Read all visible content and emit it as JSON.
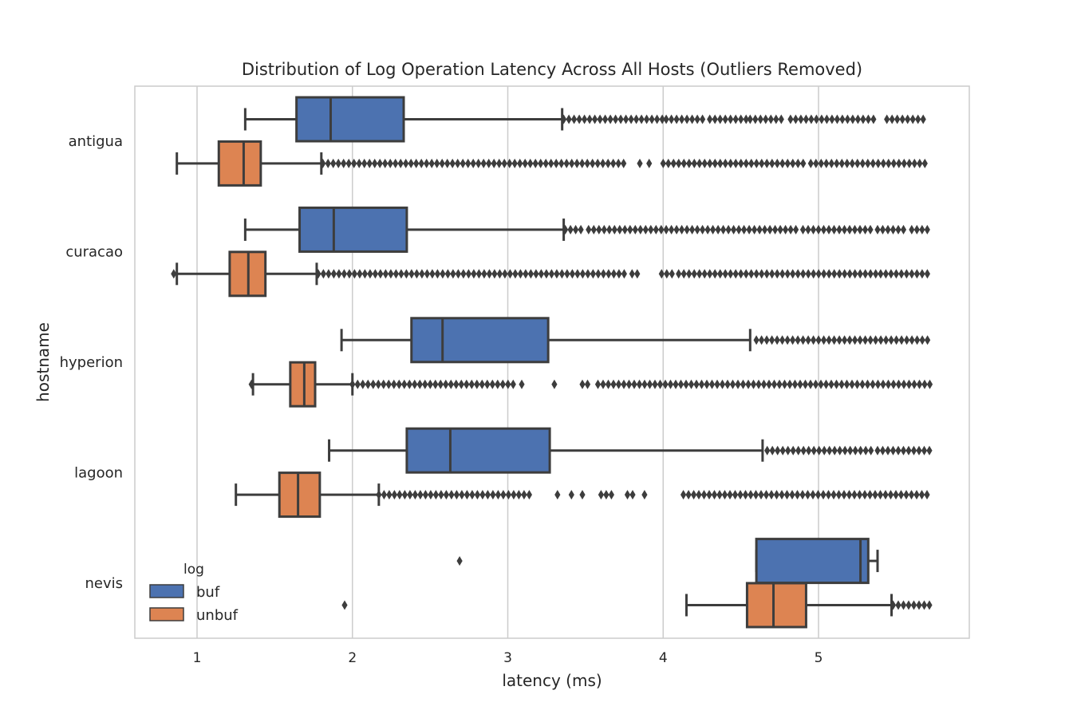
{
  "chart_data": {
    "type": "boxplot",
    "orientation": "horizontal",
    "title": "Distribution of Log Operation Latency Across All Hosts (Outliers Removed)",
    "xlabel": "latency (ms)",
    "ylabel": "hostname",
    "xlim": [
      0.6,
      5.97
    ],
    "x_ticks": [
      "1",
      "2",
      "3",
      "4",
      "5"
    ],
    "x_tick_values": [
      1,
      2,
      3,
      4,
      5
    ],
    "grid": "vertical",
    "categories": [
      "antigua",
      "curacao",
      "hyperion",
      "lagoon",
      "nevis"
    ],
    "legend": {
      "title": "log",
      "position": "lower-left",
      "entries": [
        {
          "name": "buf",
          "color": "#4c72b0"
        },
        {
          "name": "unbuf",
          "color": "#dd8452"
        }
      ]
    },
    "series": [
      {
        "name": "buf",
        "color": "#4c72b0",
        "boxes": [
          {
            "category": "antigua",
            "whislo": 1.31,
            "q1": 1.64,
            "med": 1.86,
            "q3": 2.33,
            "whishi": 3.35,
            "fliers": [
              [
                3.36,
                4.02
              ],
              [
                4.02,
                4.28
              ],
              [
                4.3,
                4.54
              ],
              [
                4.56,
                4.78
              ],
              [
                4.82,
                5.37
              ],
              [
                5.44,
                5.7
              ]
            ]
          },
          {
            "category": "curacao",
            "whislo": 1.31,
            "q1": 1.66,
            "med": 1.88,
            "q3": 2.35,
            "whishi": 3.36,
            "fliers": [
              [
                3.37,
                3.5
              ],
              [
                3.52,
                4.0
              ],
              [
                4.02,
                4.88
              ],
              [
                4.9,
                5.36
              ],
              [
                5.38,
                5.58
              ],
              [
                5.6,
                5.72
              ]
            ]
          },
          {
            "category": "hyperion",
            "whislo": 1.93,
            "q1": 2.38,
            "med": 2.58,
            "q3": 3.26,
            "whishi": 4.56,
            "fliers": [
              [
                4.6,
                5.73
              ]
            ]
          },
          {
            "category": "lagoon",
            "whislo": 1.85,
            "q1": 2.35,
            "med": 2.63,
            "q3": 3.27,
            "whishi": 4.64,
            "fliers": [
              [
                4.67,
                4.74
              ],
              [
                4.77,
                5.36
              ],
              [
                5.38,
                5.72
              ]
            ]
          },
          {
            "category": "nevis",
            "whislo": 4.6,
            "q1": 4.6,
            "med": 5.27,
            "q3": 5.32,
            "whishi": 5.38,
            "fliers": [
              [
                2.69,
                2.69
              ]
            ]
          }
        ]
      },
      {
        "name": "unbuf",
        "color": "#dd8452",
        "boxes": [
          {
            "category": "antigua",
            "whislo": 0.87,
            "q1": 1.14,
            "med": 1.3,
            "q3": 1.41,
            "whishi": 1.8,
            "fliers": [
              [
                1.81,
                3.76
              ],
              [
                3.85,
                3.85
              ],
              [
                3.91,
                3.91
              ],
              [
                4.0,
                4.92
              ],
              [
                4.95,
                5.71
              ]
            ]
          },
          {
            "category": "curacao",
            "whislo": 0.87,
            "q1": 1.21,
            "med": 1.33,
            "q3": 1.44,
            "whishi": 1.77,
            "fliers": [
              [
                0.85,
                0.86
              ],
              [
                1.78,
                3.76
              ],
              [
                3.8,
                3.86
              ],
              [
                3.99,
                4.06
              ],
              [
                4.1,
                5.37
              ],
              [
                5.4,
                5.72
              ]
            ]
          },
          {
            "category": "hyperion",
            "whislo": 1.36,
            "q1": 1.6,
            "med": 1.69,
            "q3": 1.76,
            "whishi": 2.0,
            "fliers": [
              [
                1.35,
                1.37
              ],
              [
                2.0,
                3.05
              ],
              [
                3.09,
                3.11
              ],
              [
                3.3,
                3.3
              ],
              [
                3.48,
                3.52
              ],
              [
                3.58,
                5.72
              ]
            ]
          },
          {
            "category": "lagoon",
            "whislo": 1.25,
            "q1": 1.53,
            "med": 1.65,
            "q3": 1.79,
            "whishi": 2.17,
            "fliers": [
              [
                2.17,
                3.17
              ],
              [
                3.32,
                3.32
              ],
              [
                3.41,
                3.41
              ],
              [
                3.48,
                3.48
              ],
              [
                3.6,
                3.68
              ],
              [
                3.77,
                3.81
              ],
              [
                3.88,
                3.88
              ],
              [
                4.13,
                4.2
              ],
              [
                4.23,
                5.72
              ]
            ]
          },
          {
            "category": "nevis",
            "whislo": 4.15,
            "q1": 4.54,
            "med": 4.71,
            "q3": 4.92,
            "whishi": 5.47,
            "fliers": [
              [
                1.95,
                1.95
              ],
              [
                5.48,
                5.72
              ]
            ]
          }
        ]
      }
    ]
  }
}
